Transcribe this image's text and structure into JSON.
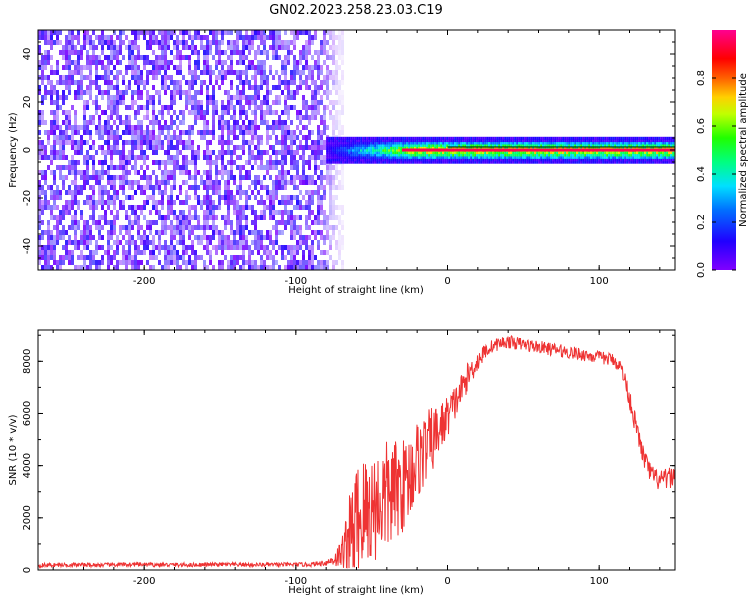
{
  "figure_title": "GN02.2023.258.23.03.C19",
  "colorbar": {
    "label": "Normalized spectral amplitude",
    "ticks": [
      "0.0",
      "0.2",
      "0.4",
      "0.6",
      "0.8"
    ],
    "tick_values": [
      0.0,
      0.2,
      0.4,
      0.6,
      0.8
    ],
    "range": [
      0,
      1
    ],
    "colormap": "hsv (purple-blue-cyan-green-yellow-orange-red-magenta)"
  },
  "chart_data": [
    {
      "type": "heatmap",
      "title": "",
      "xlabel": "Height of straight line (km)",
      "ylabel": "Frequency (Hz)",
      "xlim": [
        -270,
        150
      ],
      "ylim": [
        -50,
        50
      ],
      "xticks": [
        "-200",
        "-100",
        "0",
        "100"
      ],
      "xtick_values": [
        -200,
        -100,
        0,
        100
      ],
      "yticks": [
        "-40",
        "-20",
        "0",
        "20",
        "40"
      ],
      "ytick_values": [
        -40,
        -20,
        0,
        20,
        40
      ],
      "regions": [
        {
          "x_range": [
            -270,
            -70
          ],
          "y_range": [
            -50,
            50
          ],
          "description": "broadband low-amplitude noise",
          "amplitude_range": [
            0.0,
            0.15
          ]
        },
        {
          "x_range": [
            -80,
            150
          ],
          "y_range": [
            -5,
            5
          ],
          "description": "narrow band centered near 0 Hz",
          "amplitude_range": [
            0.1,
            1.0
          ]
        }
      ],
      "center_line": {
        "y": 0,
        "x_range": [
          -30,
          150
        ],
        "amplitude": 0.95
      }
    },
    {
      "type": "line",
      "title": "",
      "xlabel": "Height of straight line (km)",
      "ylabel": "SNR (10 * v/v)",
      "xlim": [
        -270,
        150
      ],
      "ylim": [
        0,
        9200
      ],
      "xticks": [
        "-200",
        "-100",
        "0",
        "100"
      ],
      "xtick_values": [
        -200,
        -100,
        0,
        100
      ],
      "yticks": [
        "0",
        "2000",
        "4000",
        "6000",
        "8000"
      ],
      "ytick_values": [
        0,
        2000,
        4000,
        6000,
        8000
      ],
      "series": [
        {
          "color": "#ee3333",
          "x": [
            -270,
            -250,
            -230,
            -210,
            -190,
            -170,
            -150,
            -130,
            -110,
            -90,
            -80,
            -75,
            -70,
            -65,
            -60,
            -55,
            -50,
            -45,
            -40,
            -35,
            -30,
            -25,
            -20,
            -15,
            -10,
            -5,
            0,
            5,
            10,
            15,
            20,
            25,
            30,
            35,
            40,
            45,
            50,
            55,
            60,
            65,
            70,
            75,
            80,
            85,
            90,
            95,
            100,
            105,
            110,
            115,
            120,
            125,
            130,
            135,
            140,
            145,
            150
          ],
          "y": [
            180,
            200,
            190,
            210,
            200,
            195,
            210,
            200,
            205,
            210,
            280,
            400,
            600,
            1200,
            1800,
            2100,
            2400,
            2600,
            2800,
            3000,
            3200,
            3600,
            4200,
            4600,
            5000,
            5400,
            5900,
            6400,
            7000,
            7600,
            8000,
            8400,
            8600,
            8700,
            8750,
            8700,
            8650,
            8600,
            8550,
            8500,
            8450,
            8400,
            8350,
            8300,
            8250,
            8200,
            8150,
            8100,
            8050,
            7700,
            6600,
            5300,
            4200,
            3600,
            3400,
            3500,
            3600
          ],
          "noise_amplitude": [
            80,
            80,
            80,
            80,
            80,
            80,
            80,
            80,
            80,
            80,
            120,
            250,
            600,
            1600,
            2400,
            2400,
            2200,
            2200,
            2200,
            2000,
            1800,
            1700,
            1600,
            1400,
            1300,
            1000,
            800,
            700,
            600,
            500,
            400,
            300,
            250,
            250,
            250,
            250,
            250,
            250,
            250,
            250,
            250,
            250,
            250,
            250,
            250,
            250,
            250,
            250,
            250,
            300,
            400,
            400,
            400,
            400,
            400,
            400,
            400
          ]
        }
      ]
    }
  ]
}
